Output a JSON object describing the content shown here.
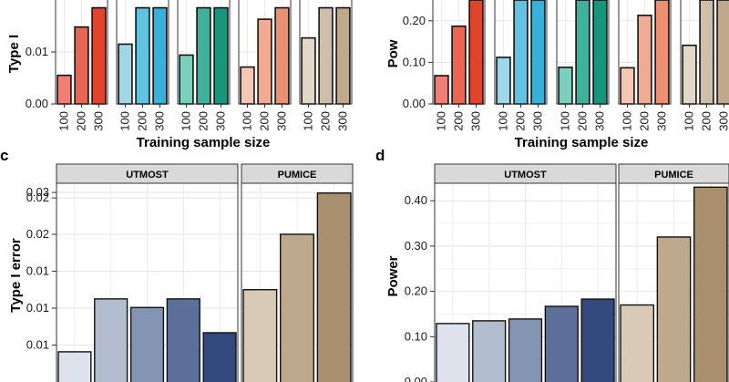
{
  "chart_data": [
    {
      "panel": "a",
      "type": "bar",
      "ylabel": "Type I",
      "xlabel": "Training sample size",
      "ylim": [
        0,
        0.02
      ],
      "yticks": [
        "0.00",
        "0.01"
      ],
      "categories": [
        "100",
        "200",
        "300"
      ],
      "groups": [
        {
          "values": [
            0.0055,
            0.0148,
            0.0185
          ],
          "colors": [
            "#ef7f76",
            "#ea6653",
            "#e0442c"
          ]
        },
        {
          "values": [
            0.0115,
            0.0185,
            0.0185
          ],
          "colors": [
            "#9fd6e8",
            "#62c3e1",
            "#37b1d9"
          ]
        },
        {
          "values": [
            0.0094,
            0.0185,
            0.0185
          ],
          "colors": [
            "#7dcfbd",
            "#3fb39a",
            "#16977c"
          ]
        },
        {
          "values": [
            0.0071,
            0.0163,
            0.0185
          ],
          "colors": [
            "#f6c6b5",
            "#f1ab92",
            "#ec9072"
          ]
        },
        {
          "values": [
            0.0127,
            0.0185,
            0.0185
          ],
          "colors": [
            "#e3d8c7",
            "#cfbfa8",
            "#bea98d"
          ]
        }
      ]
    },
    {
      "panel": "b",
      "type": "bar",
      "ylabel": "Pow",
      "xlabel": "Training sample size",
      "ylim": [
        0,
        0.25
      ],
      "yticks": [
        "0.00",
        "0.10",
        "0.20"
      ],
      "categories": [
        "100",
        "200",
        "300"
      ],
      "groups": [
        {
          "values": [
            0.068,
            0.187,
            0.25
          ],
          "colors": [
            "#ef7f76",
            "#ea6653",
            "#e0442c"
          ]
        },
        {
          "values": [
            0.112,
            0.25,
            0.25
          ],
          "colors": [
            "#9fd6e8",
            "#62c3e1",
            "#37b1d9"
          ]
        },
        {
          "values": [
            0.088,
            0.25,
            0.25
          ],
          "colors": [
            "#7dcfbd",
            "#3fb39a",
            "#16977c"
          ]
        },
        {
          "values": [
            0.087,
            0.213,
            0.25
          ],
          "colors": [
            "#f6c6b5",
            "#f1ab92",
            "#ec9072"
          ]
        },
        {
          "values": [
            0.141,
            0.25,
            0.25
          ],
          "colors": [
            "#e3d8c7",
            "#cfbfa8",
            "#bea98d"
          ]
        }
      ]
    },
    {
      "panel": "c",
      "type": "bar",
      "ylabel": "Type I error",
      "ylim": [
        0,
        0.031
      ],
      "yticks": [
        "0.00",
        "0.01",
        "0.01",
        "0.01",
        "0.02",
        "0.02",
        "0.03"
      ],
      "facets": [
        {
          "strip": "UTMOST",
          "values": [
            0.0052,
            0.0138,
            0.0124,
            0.0138,
            0.0083
          ],
          "colors": [
            "#dde2ec",
            "#b2bdd0",
            "#8495b3",
            "#5c6f98",
            "#33497e"
          ]
        },
        {
          "strip": "PUMICE",
          "values": [
            0.0153,
            0.0243,
            0.031
          ],
          "colors": [
            "#d8cab6",
            "#bfa98c",
            "#a8906f"
          ]
        }
      ]
    },
    {
      "panel": "d",
      "type": "bar",
      "ylabel": "Power",
      "ylim": [
        0,
        0.43
      ],
      "yticks": [
        "0.00",
        "0.10",
        "0.20",
        "0.30",
        "0.40"
      ],
      "facets": [
        {
          "strip": "UTMOST",
          "values": [
            0.129,
            0.135,
            0.139,
            0.167,
            0.183
          ],
          "colors": [
            "#dde2ec",
            "#b2bdd0",
            "#8495b3",
            "#5c6f98",
            "#33497e"
          ]
        },
        {
          "strip": "PUMICE",
          "values": [
            0.17,
            0.32,
            0.43
          ],
          "colors": [
            "#d8cab6",
            "#bfa98c",
            "#a8906f"
          ]
        }
      ]
    }
  ]
}
